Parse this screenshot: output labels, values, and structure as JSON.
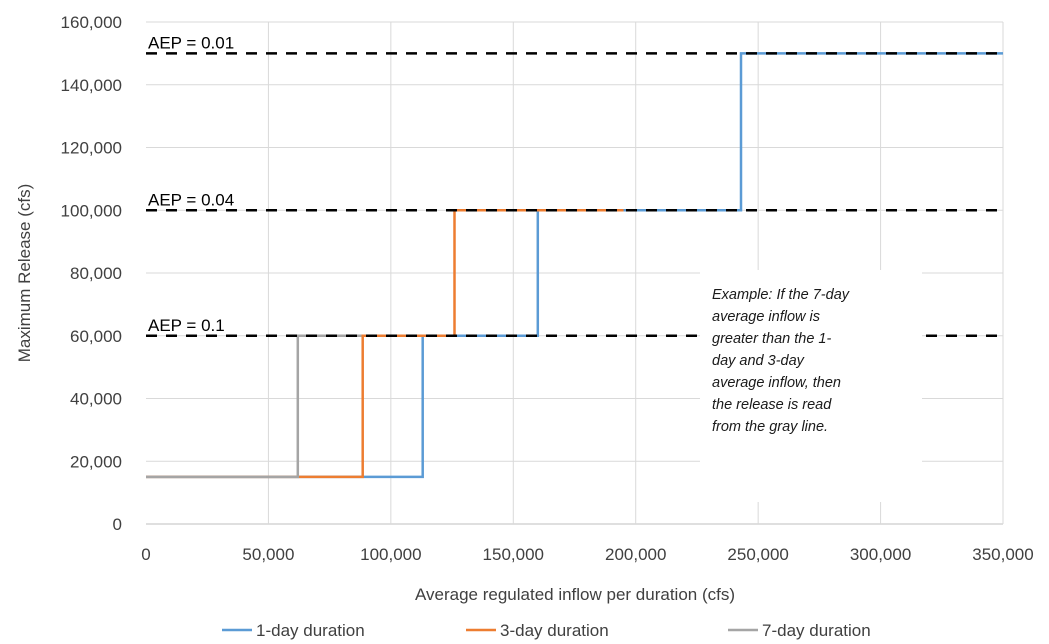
{
  "chart_data": {
    "type": "line",
    "xlabel": "Average regulated inflow per duration (cfs)",
    "ylabel": "Maximum Release (cfs)",
    "xlim": [
      0,
      350000
    ],
    "ylim": [
      0,
      160000
    ],
    "x_ticks": [
      0,
      50000,
      100000,
      150000,
      200000,
      250000,
      300000,
      350000
    ],
    "x_tick_labels": [
      "0",
      "50,000",
      "100,000",
      "150,000",
      "200,000",
      "250,000",
      "300,000",
      "350,000"
    ],
    "y_ticks": [
      0,
      20000,
      40000,
      60000,
      80000,
      100000,
      120000,
      140000,
      160000
    ],
    "y_tick_labels": [
      "0",
      "20,000",
      "40,000",
      "60,000",
      "80,000",
      "100,000",
      "120,000",
      "140,000",
      "160,000"
    ],
    "grid": true,
    "legend_position": "bottom",
    "reference_lines": [
      {
        "label": "AEP = 0.01",
        "y": 150000
      },
      {
        "label": "AEP = 0.04",
        "y": 100000
      },
      {
        "label": "AEP = 0.1",
        "y": 60000
      }
    ],
    "series": [
      {
        "name": "1-day duration",
        "color": "#5B9BD5",
        "x": [
          0,
          113000,
          113000,
          160000,
          160000,
          243000,
          243000,
          350000
        ],
        "y": [
          15000,
          15000,
          60000,
          60000,
          100000,
          100000,
          150000,
          150000
        ]
      },
      {
        "name": "3-day duration",
        "color": "#ED7D31",
        "x": [
          0,
          88500,
          88500,
          126000,
          126000,
          195000
        ],
        "y": [
          15000,
          15000,
          60000,
          60000,
          100000,
          100000
        ]
      },
      {
        "name": "7-day duration",
        "color": "#A5A5A5",
        "x": [
          0,
          62000,
          62000,
          88000
        ],
        "y": [
          15000,
          15000,
          60000,
          60000
        ]
      }
    ],
    "annotation": {
      "lines": [
        "Example: If the 7-day",
        "average inflow is",
        "greater than the 1-",
        "day and 3-day",
        "average inflow, then",
        "the release is read",
        "from the gray line."
      ]
    }
  }
}
